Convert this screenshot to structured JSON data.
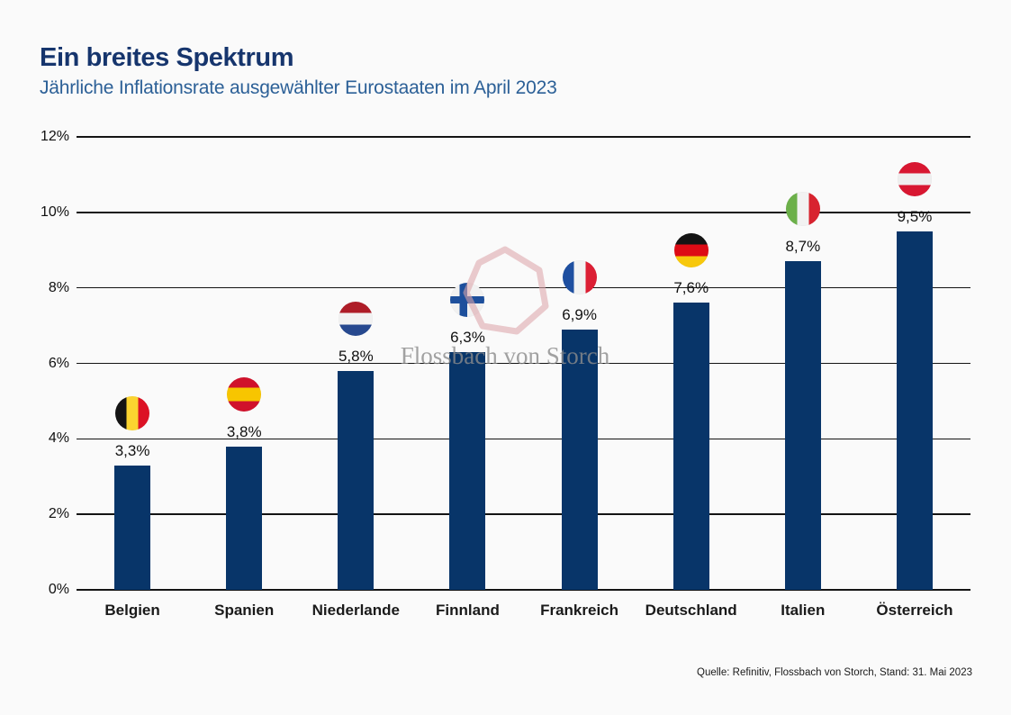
{
  "header": {
    "title": "Ein breites Spektrum",
    "subtitle": "Jährliche Inflationsrate ausgewählter Eurostaaten im April 2023"
  },
  "colors": {
    "background": "#fafafa",
    "bar": "#083569",
    "title": "#16356d",
    "subtitle": "#2c6097",
    "gridline": "#141414",
    "watermark_text": "#8c8c8c",
    "watermark_logo": "#dda6ab"
  },
  "watermark": {
    "text": "Flossbach von Storch",
    "logo": "pentagon-outline-icon"
  },
  "source": "Quelle: Refinitiv, Flossbach von Storch, Stand: 31. Mai 2023",
  "chart_data": {
    "type": "bar",
    "title": "Ein breites Spektrum",
    "subtitle": "Jährliche Inflationsrate ausgewählter Eurostaaten im April 2023",
    "categories": [
      "Belgien",
      "Spanien",
      "Niederlande",
      "Finnland",
      "Frankreich",
      "Deutschland",
      "Italien",
      "Österreich"
    ],
    "values": [
      3.3,
      3.8,
      5.8,
      6.3,
      6.9,
      7.6,
      8.7,
      9.5
    ],
    "value_labels": [
      "3,3%",
      "3,8%",
      "5,8%",
      "6,3%",
      "6,9%",
      "7,6%",
      "8,7%",
      "9,5%"
    ],
    "ylabel": "",
    "xlabel": "",
    "ylim": [
      0,
      12
    ],
    "ytick_step": 2,
    "ytick_labels": [
      "0%",
      "2%",
      "4%",
      "6%",
      "8%",
      "10%",
      "12%"
    ],
    "grid": true,
    "legend": false,
    "flags": [
      {
        "name": "belgium-flag-icon",
        "kind": "vertical",
        "colors": [
          "#141414",
          "#fbd430",
          "#dc1225"
        ]
      },
      {
        "name": "spain-flag-icon",
        "kind": "horizontal",
        "colors": [
          "#d0112b",
          "#f7c500",
          "#d0112b"
        ],
        "stops": [
          30,
          70
        ]
      },
      {
        "name": "netherlands-flag-icon",
        "kind": "horizontal",
        "colors": [
          "#ae1d28",
          "#f2f2f2",
          "#27498f"
        ]
      },
      {
        "name": "finland-flag-icon",
        "kind": "nordic-cross",
        "background": "#f1f1f1",
        "cross": "#1d4f9c"
      },
      {
        "name": "france-flag-icon",
        "kind": "vertical",
        "colors": [
          "#1e4fa0",
          "#f2f2f2",
          "#dc1f34"
        ]
      },
      {
        "name": "germany-flag-icon",
        "kind": "horizontal",
        "colors": [
          "#141414",
          "#dd0b15",
          "#f7c80c"
        ]
      },
      {
        "name": "italy-flag-icon",
        "kind": "vertical",
        "colors": [
          "#6cb04a",
          "#f2f2f2",
          "#d8232f"
        ]
      },
      {
        "name": "austria-flag-icon",
        "kind": "horizontal",
        "colors": [
          "#d81731",
          "#efefef",
          "#d81731"
        ]
      }
    ]
  }
}
